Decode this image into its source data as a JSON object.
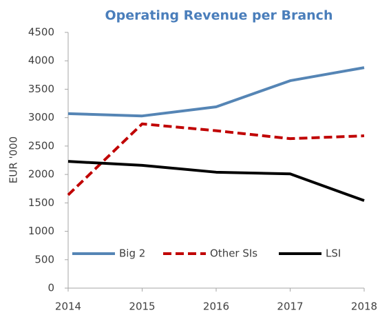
{
  "chart_data": {
    "type": "line",
    "title": "Operating Revenue per Branch",
    "y_label": "EUR '000",
    "x": [
      2014,
      2015,
      2016,
      2017,
      2018
    ],
    "xlim": [
      2014,
      2018
    ],
    "xticks": [
      2014,
      2015,
      2016,
      2017,
      2018
    ],
    "ylim": [
      0,
      4500
    ],
    "yticks": [
      0,
      500,
      1000,
      1500,
      2000,
      2500,
      3000,
      3500,
      4000,
      4500
    ],
    "series": [
      {
        "name": "Big 2",
        "color": "#5585b5",
        "dash": false,
        "values": [
          3070,
          3030,
          3190,
          3650,
          3880
        ]
      },
      {
        "name": "Other SIs",
        "color": "#c00000",
        "dash": true,
        "values": [
          1640,
          2890,
          2770,
          2630,
          2680
        ]
      },
      {
        "name": "LSI",
        "color": "#000000",
        "dash": false,
        "values": [
          2230,
          2160,
          2040,
          2010,
          1540
        ]
      }
    ]
  }
}
